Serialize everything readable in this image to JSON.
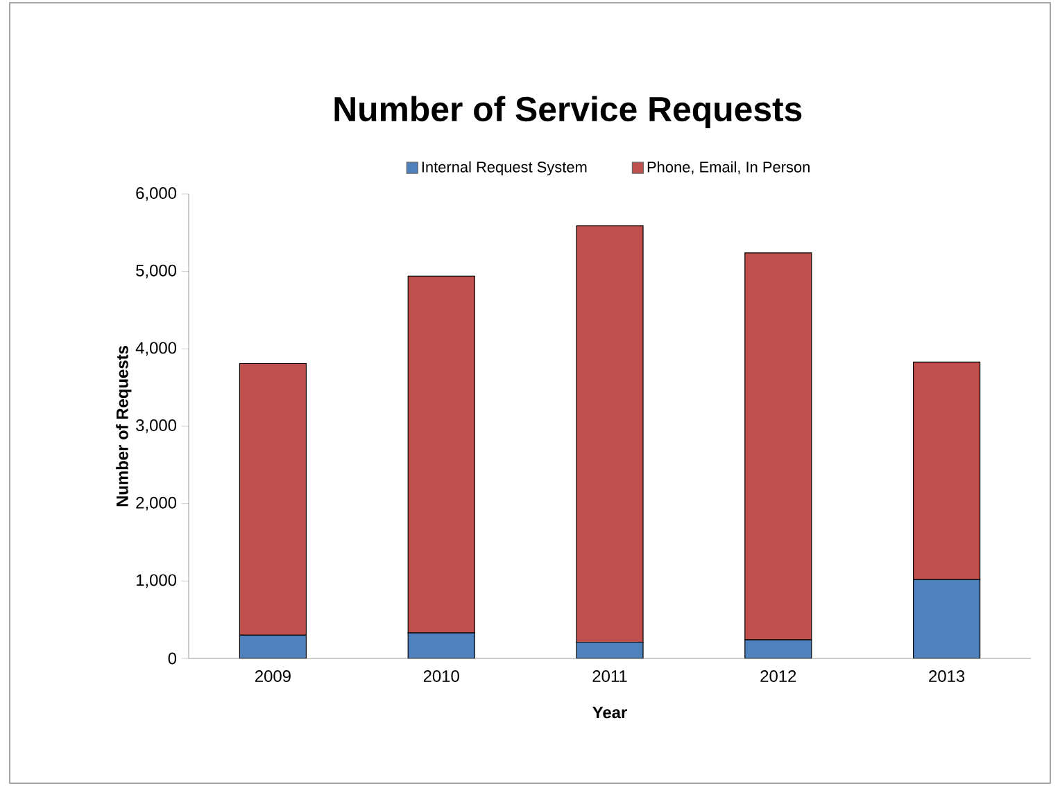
{
  "chart_data": {
    "type": "bar",
    "title": "Number of Service Requests",
    "xlabel": "Year",
    "ylabel": "Number of Requests",
    "categories": [
      "2009",
      "2010",
      "2011",
      "2012",
      "2013"
    ],
    "stacked": true,
    "legend": "top",
    "grid": false,
    "series": [
      {
        "name": "Internal Request System",
        "color": "#4f81bd",
        "values": [
          300,
          330,
          210,
          240,
          1020
        ]
      },
      {
        "name": "Phone, Email, In Person",
        "color": "#c0504d",
        "values": [
          3510,
          4610,
          5380,
          5000,
          2810
        ]
      }
    ],
    "ylim": [
      0,
      6000
    ],
    "yticks": [
      {
        "value": 0,
        "label": "0"
      },
      {
        "value": 1000,
        "label": "1,000"
      },
      {
        "value": 2000,
        "label": "2,000"
      },
      {
        "value": 3000,
        "label": "3,000"
      },
      {
        "value": 4000,
        "label": "4,000"
      },
      {
        "value": 5000,
        "label": "5,000"
      },
      {
        "value": 6000,
        "label": "6,000"
      }
    ]
  }
}
